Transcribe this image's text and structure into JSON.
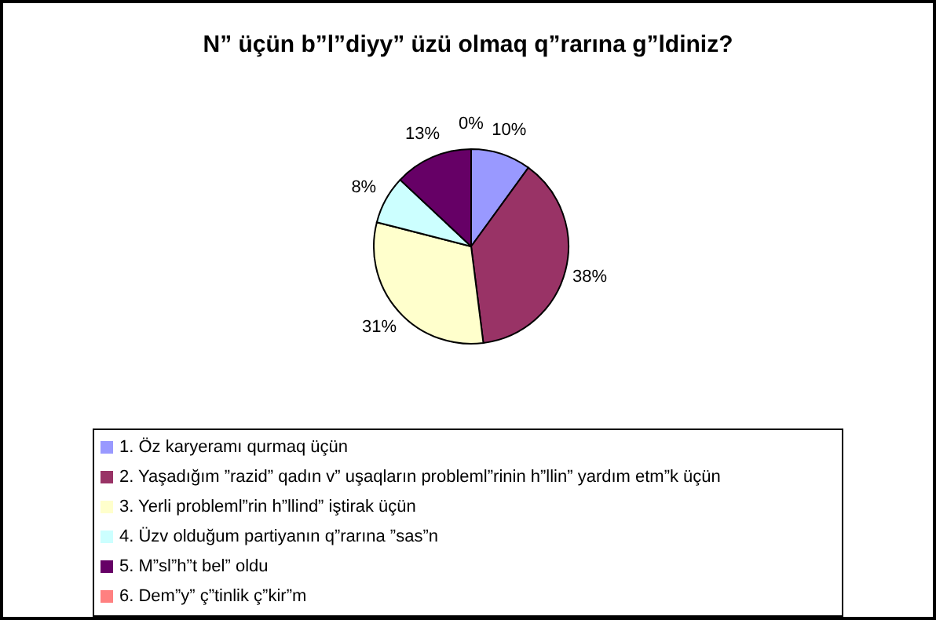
{
  "chart_data": {
    "type": "pie",
    "title": "N” üçün b”l”diyy” üzü olmaq q”rarına g”ldiniz?",
    "categories": [
      "1. Öz karyeramı qurmaq üçün",
      "2. Yaşadığım ”razid” qadın v” uşaqların probleml”rinin h”llin” yardım etm”k üçün",
      "3. Yerli probleml”rin h”llind” iştirak üçün",
      "4. Üzv olduğum partiyanın q”rarına ”sas”n",
      "5. M”sl”h”t bel” oldu",
      "6. Dem”y” ç”tinlik ç”kir”m"
    ],
    "values": [
      10,
      38,
      31,
      8,
      13,
      0
    ],
    "value_labels": [
      "10%",
      "38%",
      "31%",
      "8%",
      "13%",
      "0%"
    ],
    "colors": [
      "#9999ff",
      "#993366",
      "#ffffcc",
      "#ccffff",
      "#660066",
      "#ff8080"
    ],
    "legend": "bottom"
  }
}
